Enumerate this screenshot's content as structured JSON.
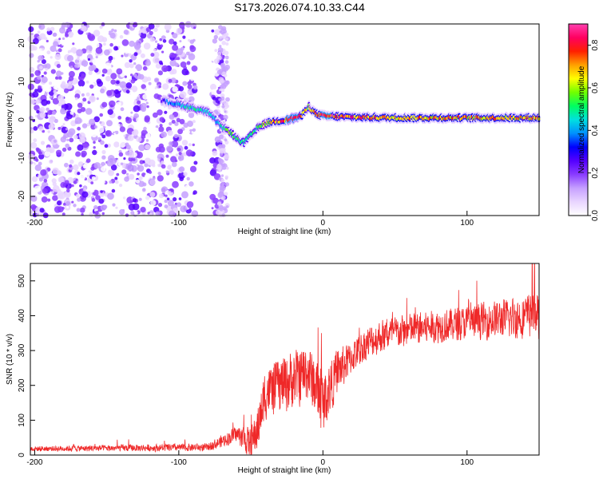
{
  "page": {
    "title": "S173.2026.074.10.33.C44"
  },
  "chart_data": [
    {
      "type": "heatmap",
      "name": "spectrogram",
      "xlabel": "Height of straight line (km)",
      "ylabel": "Frequency (Hz)",
      "xlim": [
        -203,
        150
      ],
      "ylim": [
        -25,
        25
      ],
      "x_ticks": [
        -200,
        -100,
        0,
        100
      ],
      "x_tick_labels": [
        "-200",
        "-100",
        "0",
        "100"
      ],
      "y_ticks": [
        20,
        10,
        0,
        -10,
        -20
      ],
      "y_tick_labels": [
        "20",
        "10",
        "0",
        "-10",
        "-20"
      ],
      "colorbar": {
        "label": "Normalized spectral amplitude",
        "range": [
          0,
          0.9
        ],
        "ticks": [
          0,
          0.2,
          0.4,
          0.6,
          0.8
        ],
        "tick_labels": [
          "0.0",
          "0.2",
          "0.4",
          "0.6",
          "0.8"
        ],
        "colormap": [
          "#ffffff",
          "#e9d5ff",
          "#c6a0ff",
          "#8a3cff",
          "#5500ff",
          "#0000ff",
          "#0090ff",
          "#00e0e0",
          "#00ff60",
          "#70ff00",
          "#ffff00",
          "#ffa000",
          "#ff2000",
          "#ff0060",
          "#ff40b0"
        ]
      },
      "ridge": {
        "x": [
          -112,
          -100,
          -95,
          -90,
          -85,
          -80,
          -75,
          -70,
          -65,
          -60,
          -55,
          -50,
          -45,
          -40,
          -35,
          -30,
          -25,
          -20,
          -15,
          -10,
          -5,
          0,
          20,
          50,
          100,
          150
        ],
        "freq": [
          5,
          4,
          3.5,
          3,
          2.5,
          2,
          0,
          -2,
          -3,
          -5,
          -6,
          -4,
          -2,
          -1,
          -0.5,
          -0.3,
          0,
          0.5,
          1,
          3.5,
          1.5,
          1,
          0.7,
          0.5,
          0.5,
          0.5
        ],
        "amplitude": [
          0.3,
          0.4,
          0.45,
          0.5,
          0.45,
          0.5,
          0.4,
          0.45,
          0.55,
          0.5,
          0.5,
          0.5,
          0.55,
          0.6,
          0.7,
          0.75,
          0.8,
          0.85,
          0.75,
          0.55,
          0.75,
          0.8,
          0.75,
          0.7,
          0.7,
          0.7
        ]
      },
      "noise_region": {
        "x_from": -203,
        "x_to": -65,
        "freq_from": -25,
        "freq_to": 25,
        "amplitude_max": 0.25
      }
    },
    {
      "type": "line",
      "name": "snr",
      "xlabel": "Height of straight line (km)",
      "ylabel": "SNR (10 * v/v)",
      "xlim": [
        -203,
        150
      ],
      "ylim": [
        0,
        550
      ],
      "x_ticks": [
        -200,
        -100,
        0,
        100
      ],
      "x_tick_labels": [
        "-200",
        "-100",
        "0",
        "100"
      ],
      "y_ticks": [
        0,
        100,
        200,
        300,
        400,
        500
      ],
      "y_tick_labels": [
        "0",
        "100",
        "200",
        "300",
        "400",
        "500"
      ],
      "color": "#ef2828",
      "trend": {
        "x": [
          -203,
          -80,
          -70,
          -60,
          -55,
          -50,
          -45,
          -40,
          -35,
          -30,
          -20,
          -10,
          0,
          10,
          20,
          30,
          40,
          50,
          60,
          80,
          100,
          120,
          150
        ],
        "y": [
          18,
          22,
          40,
          60,
          50,
          30,
          80,
          180,
          190,
          200,
          220,
          240,
          150,
          240,
          280,
          320,
          340,
          350,
          360,
          370,
          380,
          390,
          400
        ]
      },
      "spread": {
        "x": [
          -203,
          -80,
          -60,
          -40,
          -20,
          0,
          20,
          50,
          100,
          150
        ],
        "y": [
          8,
          12,
          25,
          80,
          90,
          90,
          50,
          50,
          50,
          70
        ]
      },
      "max_value": 560
    }
  ]
}
